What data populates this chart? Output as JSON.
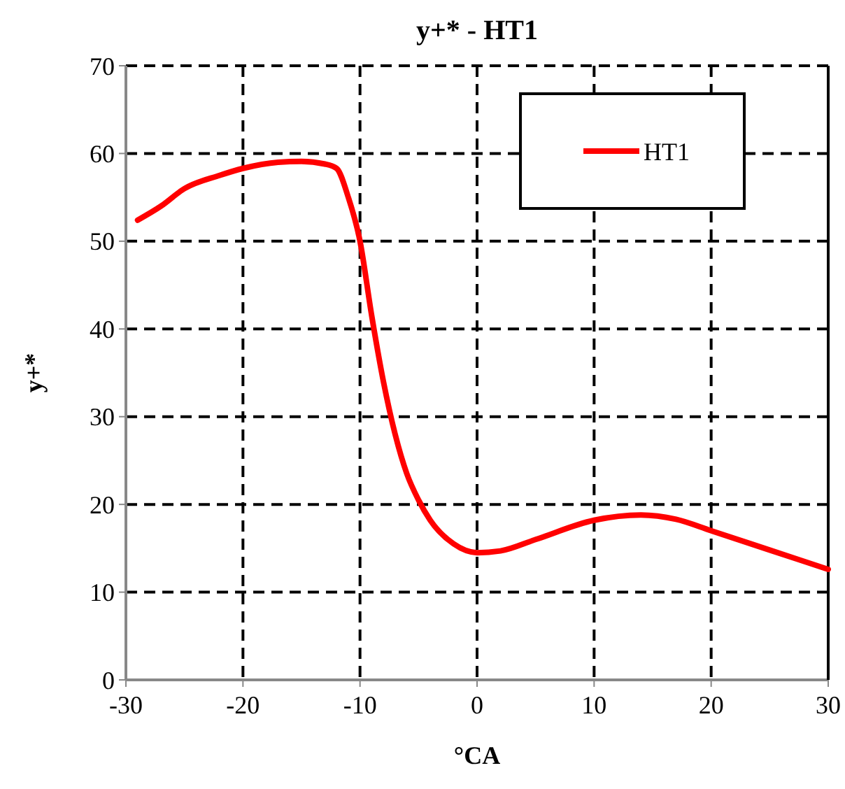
{
  "chart_data": {
    "type": "line",
    "title": "y+* - HT1",
    "xlabel": "°CA",
    "ylabel": "y+*",
    "xlim": [
      -30,
      30
    ],
    "xticks": [
      -30,
      -20,
      -10,
      0,
      10,
      20,
      30
    ],
    "ylim": [
      0,
      70
    ],
    "yticks": [
      0,
      10,
      20,
      30,
      40,
      50,
      60,
      70
    ],
    "grid": true,
    "legend": "top right",
    "marker": "none",
    "line_style": "solid",
    "series": [
      {
        "name": "HT1",
        "color": "#ff0000",
        "x": [
          -29,
          -27,
          -25,
          -22,
          -20,
          -17,
          -15,
          -13,
          -12,
          -11,
          -10,
          -9,
          -8,
          -7,
          -6,
          -5,
          -4,
          -2,
          0,
          2,
          5,
          10,
          14,
          17,
          20,
          25,
          30
        ],
        "values": [
          52.4,
          54,
          56,
          57.5,
          58.3,
          59,
          59.1,
          58.8,
          58.3,
          55,
          50,
          41.5,
          34,
          28,
          23.5,
          20.5,
          18.2,
          15.5,
          14.5,
          14.7,
          16,
          18.2,
          18.8,
          18.3,
          17,
          14.8,
          12.6
        ]
      }
    ]
  }
}
